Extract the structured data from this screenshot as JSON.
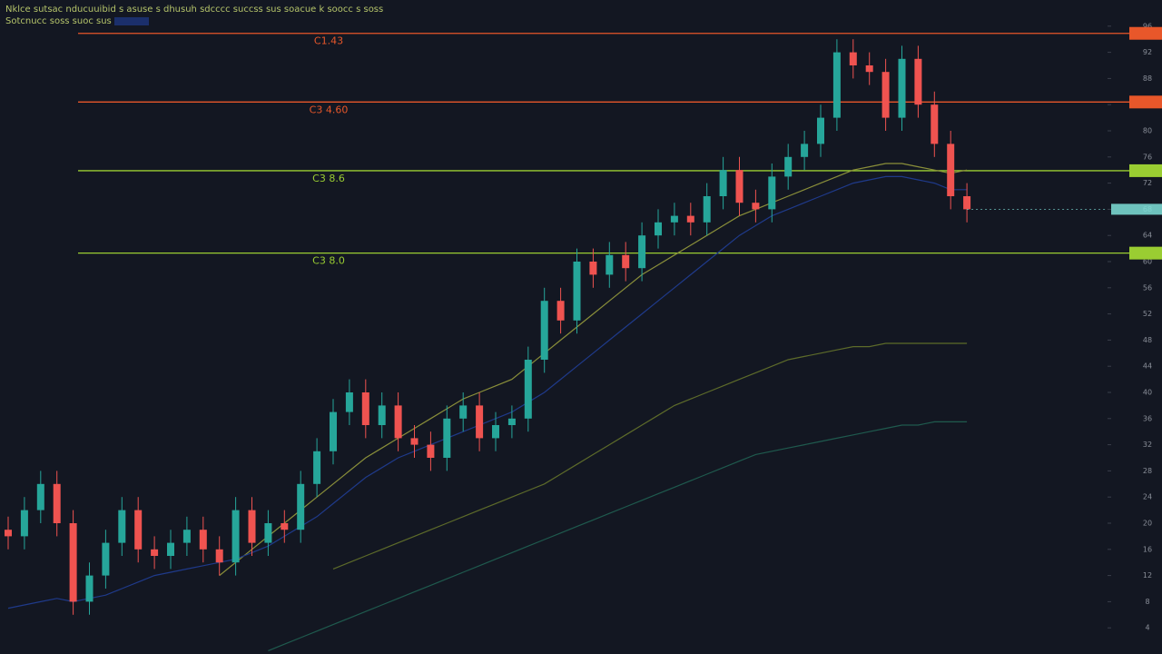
{
  "chart_data": {
    "type": "candlestick",
    "title": "Nklce sutsac nducuuibid s asuse s dhusuh sdcccc succss sus soacue k soocc s soss",
    "subtitle": "Sotcnucc soss suoc sus",
    "ylim": [
      0,
      100
    ],
    "yticks": [
      4,
      8,
      12,
      16,
      20,
      24,
      28,
      32,
      36,
      40,
      44,
      48,
      52,
      56,
      60,
      64,
      68,
      72,
      76,
      80,
      84,
      88,
      92,
      96
    ],
    "up_color": "#26a69a",
    "down_color": "#ef5350",
    "open": [
      19,
      18,
      22,
      26,
      20,
      8,
      12,
      17,
      22,
      16,
      15,
      17,
      19,
      16,
      14,
      22,
      17,
      20,
      19,
      26,
      31,
      37,
      40,
      35,
      38,
      33,
      32,
      30,
      36,
      38,
      33,
      35,
      36,
      45,
      54,
      51,
      60,
      58,
      61,
      59,
      64,
      66,
      67,
      66,
      70,
      74,
      69,
      68,
      73,
      76,
      78,
      82,
      92,
      90,
      89,
      82,
      91,
      84,
      78,
      70
    ],
    "high": [
      21,
      24,
      28,
      28,
      22,
      14,
      19,
      24,
      24,
      18,
      19,
      21,
      21,
      18,
      24,
      24,
      22,
      22,
      28,
      33,
      39,
      42,
      42,
      40,
      40,
      35,
      34,
      38,
      40,
      40,
      37,
      38,
      47,
      56,
      56,
      62,
      62,
      63,
      63,
      66,
      68,
      69,
      69,
      72,
      76,
      76,
      71,
      75,
      78,
      80,
      84,
      94,
      94,
      92,
      91,
      93,
      93,
      86,
      80,
      72
    ],
    "low": [
      16,
      16,
      20,
      18,
      6,
      6,
      10,
      15,
      14,
      13,
      13,
      15,
      14,
      12,
      12,
      15,
      15,
      17,
      17,
      24,
      29,
      35,
      33,
      33,
      31,
      30,
      28,
      28,
      34,
      31,
      31,
      33,
      34,
      43,
      49,
      49,
      56,
      56,
      57,
      57,
      62,
      64,
      64,
      64,
      68,
      67,
      66,
      66,
      71,
      74,
      76,
      80,
      88,
      87,
      80,
      80,
      82,
      76,
      68,
      66
    ],
    "close": [
      18,
      22,
      26,
      20,
      8,
      12,
      17,
      22,
      16,
      15,
      17,
      19,
      16,
      14,
      22,
      17,
      20,
      19,
      26,
      31,
      37,
      40,
      35,
      38,
      33,
      32,
      30,
      36,
      38,
      33,
      35,
      36,
      45,
      54,
      51,
      60,
      58,
      61,
      59,
      64,
      66,
      67,
      66,
      70,
      74,
      69,
      68,
      73,
      76,
      78,
      82,
      92,
      90,
      89,
      82,
      91,
      84,
      78,
      70,
      68
    ],
    "series": [
      {
        "color": "#8a8f3a",
        "values": [
          null,
          null,
          null,
          null,
          null,
          null,
          null,
          null,
          null,
          null,
          null,
          null,
          null,
          12,
          14,
          16,
          18,
          20,
          22,
          24,
          26,
          28,
          30,
          31.5,
          33,
          34.5,
          36,
          37.5,
          39,
          40,
          41,
          42,
          44,
          46,
          48,
          50,
          52,
          54,
          56,
          58,
          59.5,
          61,
          62.5,
          64,
          65.5,
          67,
          68,
          69,
          70,
          71,
          72,
          73,
          74,
          74.5,
          75,
          75,
          74.5,
          74,
          73.5,
          74
        ]
      },
      {
        "color": "#1f3a8a",
        "values": [
          7,
          7.5,
          8,
          8.5,
          8,
          8.5,
          9,
          10,
          11,
          12,
          12.5,
          13,
          13.5,
          14,
          14.5,
          15.5,
          16.5,
          18,
          19.5,
          21,
          23,
          25,
          27,
          28.5,
          30,
          31,
          32,
          33,
          34,
          35,
          36,
          37,
          38.5,
          40,
          42,
          44,
          46,
          48,
          50,
          52,
          54,
          56,
          58,
          60,
          62,
          64,
          65.5,
          67,
          68,
          69,
          70,
          71,
          72,
          72.5,
          73,
          73,
          72.5,
          72,
          71,
          71
        ]
      },
      {
        "color": "#5d6b2a",
        "values": [
          null,
          null,
          null,
          null,
          null,
          null,
          null,
          null,
          null,
          null,
          null,
          null,
          null,
          null,
          null,
          null,
          null,
          null,
          null,
          null,
          13,
          14,
          15,
          16,
          17,
          18,
          19,
          20,
          21,
          22,
          23,
          24,
          25,
          26,
          27.5,
          29,
          30.5,
          32,
          33.5,
          35,
          36.5,
          38,
          39,
          40,
          41,
          42,
          43,
          44,
          45,
          45.5,
          46,
          46.5,
          47,
          47,
          47.5,
          47.5,
          47.5,
          47.5,
          47.5,
          47.5
        ]
      },
      {
        "color": "#1f5a4e",
        "values": [
          null,
          null,
          null,
          null,
          null,
          null,
          null,
          null,
          null,
          null,
          null,
          null,
          null,
          null,
          null,
          null,
          0.5,
          1.5,
          2.5,
          3.5,
          4.5,
          5.5,
          6.5,
          7.5,
          8.5,
          9.5,
          10.5,
          11.5,
          12.5,
          13.5,
          14.5,
          15.5,
          16.5,
          17.5,
          18.5,
          19.5,
          20.5,
          21.5,
          22.5,
          23.5,
          24.5,
          25.5,
          26.5,
          27.5,
          28.5,
          29.5,
          30.5,
          31,
          31.5,
          32,
          32.5,
          33,
          33.5,
          34,
          34.5,
          35,
          35,
          35.5,
          35.5,
          35.5
        ]
      }
    ],
    "levels": [
      {
        "value": 94.9,
        "label": "C1.43",
        "color": "#e8572a"
      },
      {
        "value": 84.4,
        "label": "C3 4.60",
        "color": "#e8572a"
      },
      {
        "value": 73.9,
        "label": "C3 8.6",
        "color": "#9acd32"
      },
      {
        "value": 61.3,
        "label": "C3 8.0",
        "color": "#9acd32"
      }
    ],
    "last_color": "#7fe0d8"
  }
}
